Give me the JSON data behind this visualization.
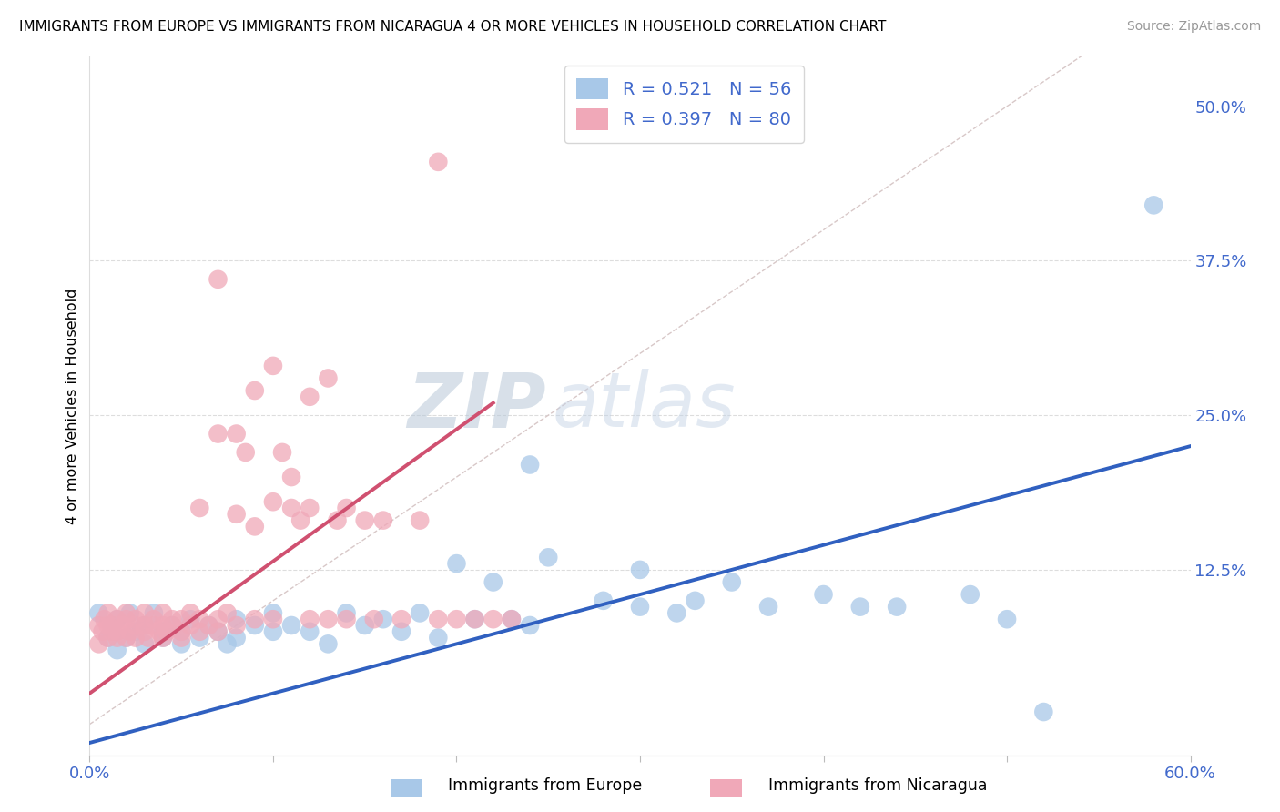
{
  "title": "IMMIGRANTS FROM EUROPE VS IMMIGRANTS FROM NICARAGUA 4 OR MORE VEHICLES IN HOUSEHOLD CORRELATION CHART",
  "source": "Source: ZipAtlas.com",
  "ylabel": "4 or more Vehicles in Household",
  "xlim": [
    0.0,
    0.6
  ],
  "ylim": [
    -0.025,
    0.54
  ],
  "R_blue": 0.521,
  "N_blue": 56,
  "R_pink": 0.397,
  "N_pink": 80,
  "color_blue": "#A8C8E8",
  "color_pink": "#F0A8B8",
  "line_blue": "#3060C0",
  "line_pink": "#D05070",
  "color_text": "#4169CC",
  "diagonal_color": "#D8C8C8",
  "background_color": "#FFFFFF",
  "grid_color": "#DDDDDD",
  "blue_line_x0": 0.0,
  "blue_line_y0": -0.015,
  "blue_line_x1": 0.6,
  "blue_line_y1": 0.225,
  "pink_line_x0": 0.0,
  "pink_line_y0": 0.025,
  "pink_line_x1": 0.22,
  "pink_line_y1": 0.26,
  "blue_points": [
    [
      0.005,
      0.09
    ],
    [
      0.01,
      0.07
    ],
    [
      0.012,
      0.08
    ],
    [
      0.015,
      0.06
    ],
    [
      0.015,
      0.085
    ],
    [
      0.02,
      0.07
    ],
    [
      0.022,
      0.09
    ],
    [
      0.025,
      0.075
    ],
    [
      0.03,
      0.08
    ],
    [
      0.03,
      0.065
    ],
    [
      0.035,
      0.09
    ],
    [
      0.04,
      0.07
    ],
    [
      0.04,
      0.075
    ],
    [
      0.045,
      0.08
    ],
    [
      0.05,
      0.075
    ],
    [
      0.05,
      0.065
    ],
    [
      0.055,
      0.085
    ],
    [
      0.06,
      0.07
    ],
    [
      0.065,
      0.08
    ],
    [
      0.07,
      0.075
    ],
    [
      0.075,
      0.065
    ],
    [
      0.08,
      0.085
    ],
    [
      0.08,
      0.07
    ],
    [
      0.09,
      0.08
    ],
    [
      0.1,
      0.075
    ],
    [
      0.1,
      0.09
    ],
    [
      0.11,
      0.08
    ],
    [
      0.12,
      0.075
    ],
    [
      0.13,
      0.065
    ],
    [
      0.14,
      0.09
    ],
    [
      0.15,
      0.08
    ],
    [
      0.16,
      0.085
    ],
    [
      0.17,
      0.075
    ],
    [
      0.18,
      0.09
    ],
    [
      0.19,
      0.07
    ],
    [
      0.2,
      0.13
    ],
    [
      0.21,
      0.085
    ],
    [
      0.22,
      0.115
    ],
    [
      0.23,
      0.085
    ],
    [
      0.24,
      0.08
    ],
    [
      0.25,
      0.135
    ],
    [
      0.28,
      0.1
    ],
    [
      0.3,
      0.095
    ],
    [
      0.3,
      0.125
    ],
    [
      0.32,
      0.09
    ],
    [
      0.33,
      0.1
    ],
    [
      0.35,
      0.115
    ],
    [
      0.37,
      0.095
    ],
    [
      0.4,
      0.105
    ],
    [
      0.42,
      0.095
    ],
    [
      0.44,
      0.095
    ],
    [
      0.48,
      0.105
    ],
    [
      0.5,
      0.085
    ],
    [
      0.52,
      0.01
    ],
    [
      0.58,
      0.42
    ],
    [
      0.24,
      0.21
    ]
  ],
  "pink_points": [
    [
      0.005,
      0.065
    ],
    [
      0.005,
      0.08
    ],
    [
      0.007,
      0.075
    ],
    [
      0.008,
      0.085
    ],
    [
      0.01,
      0.07
    ],
    [
      0.01,
      0.08
    ],
    [
      0.01,
      0.09
    ],
    [
      0.012,
      0.075
    ],
    [
      0.013,
      0.08
    ],
    [
      0.015,
      0.07
    ],
    [
      0.015,
      0.085
    ],
    [
      0.015,
      0.075
    ],
    [
      0.018,
      0.08
    ],
    [
      0.02,
      0.07
    ],
    [
      0.02,
      0.085
    ],
    [
      0.02,
      0.09
    ],
    [
      0.022,
      0.075
    ],
    [
      0.025,
      0.08
    ],
    [
      0.025,
      0.07
    ],
    [
      0.025,
      0.085
    ],
    [
      0.03,
      0.08
    ],
    [
      0.03,
      0.075
    ],
    [
      0.03,
      0.09
    ],
    [
      0.032,
      0.07
    ],
    [
      0.035,
      0.08
    ],
    [
      0.035,
      0.085
    ],
    [
      0.038,
      0.075
    ],
    [
      0.04,
      0.08
    ],
    [
      0.04,
      0.07
    ],
    [
      0.04,
      0.09
    ],
    [
      0.042,
      0.075
    ],
    [
      0.045,
      0.08
    ],
    [
      0.045,
      0.085
    ],
    [
      0.05,
      0.075
    ],
    [
      0.05,
      0.07
    ],
    [
      0.05,
      0.085
    ],
    [
      0.055,
      0.08
    ],
    [
      0.055,
      0.09
    ],
    [
      0.06,
      0.075
    ],
    [
      0.06,
      0.085
    ],
    [
      0.065,
      0.08
    ],
    [
      0.07,
      0.085
    ],
    [
      0.07,
      0.075
    ],
    [
      0.075,
      0.09
    ],
    [
      0.08,
      0.08
    ],
    [
      0.08,
      0.17
    ],
    [
      0.085,
      0.22
    ],
    [
      0.09,
      0.16
    ],
    [
      0.09,
      0.085
    ],
    [
      0.1,
      0.18
    ],
    [
      0.1,
      0.085
    ],
    [
      0.105,
      0.22
    ],
    [
      0.11,
      0.2
    ],
    [
      0.11,
      0.175
    ],
    [
      0.115,
      0.165
    ],
    [
      0.12,
      0.085
    ],
    [
      0.12,
      0.175
    ],
    [
      0.13,
      0.085
    ],
    [
      0.135,
      0.165
    ],
    [
      0.14,
      0.175
    ],
    [
      0.14,
      0.085
    ],
    [
      0.15,
      0.165
    ],
    [
      0.155,
      0.085
    ],
    [
      0.16,
      0.165
    ],
    [
      0.17,
      0.085
    ],
    [
      0.18,
      0.165
    ],
    [
      0.19,
      0.085
    ],
    [
      0.2,
      0.085
    ],
    [
      0.21,
      0.085
    ],
    [
      0.22,
      0.085
    ],
    [
      0.23,
      0.085
    ],
    [
      0.07,
      0.36
    ],
    [
      0.1,
      0.29
    ],
    [
      0.09,
      0.27
    ],
    [
      0.12,
      0.265
    ],
    [
      0.19,
      0.455
    ],
    [
      0.13,
      0.28
    ],
    [
      0.07,
      0.235
    ],
    [
      0.08,
      0.235
    ],
    [
      0.06,
      0.175
    ]
  ]
}
